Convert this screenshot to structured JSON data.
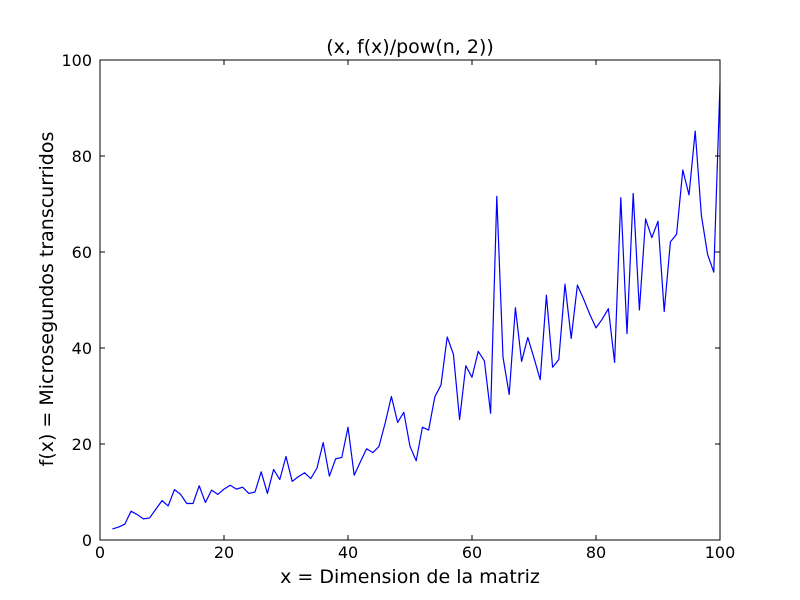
{
  "chart_data": {
    "type": "line",
    "title": "(x, f(x)/pow(n, 2))",
    "xlabel": "x = Dimension de la matriz",
    "ylabel": "f(x) = Microsegundos transcurridos",
    "xlim": [
      0,
      100
    ],
    "ylim": [
      0,
      100
    ],
    "xticks": [
      "0",
      "20",
      "40",
      "60",
      "80",
      "100"
    ],
    "yticks": [
      "0",
      "20",
      "40",
      "60",
      "80",
      "100"
    ],
    "grid": false,
    "line_color": "#0000ff",
    "series": [
      {
        "x": [
          2,
          3,
          4,
          5,
          6,
          7,
          8,
          9,
          10,
          11,
          12,
          13,
          14,
          15,
          16,
          17,
          18,
          19,
          20,
          21,
          22,
          23,
          24,
          25,
          26,
          27,
          28,
          29,
          30,
          31,
          32,
          33,
          34,
          35,
          36,
          37,
          38,
          39,
          40,
          41,
          42,
          43,
          44,
          45,
          46,
          47,
          48,
          49,
          50,
          51,
          52,
          53,
          54,
          55,
          56,
          57,
          58,
          59,
          60,
          61,
          62,
          63,
          64,
          65,
          66,
          67,
          68,
          69,
          70,
          71,
          72,
          73,
          74,
          75,
          76,
          77,
          78,
          79,
          80,
          81,
          82,
          83,
          84,
          85,
          86,
          87,
          88,
          89,
          90,
          91,
          92,
          93,
          94,
          95,
          96,
          97,
          98,
          99,
          100
        ],
        "values": [
          2.3,
          2.7,
          3.3,
          6.0,
          5.3,
          4.4,
          4.6,
          6.4,
          8.2,
          7.1,
          10.5,
          9.5,
          7.6,
          7.6,
          11.3,
          7.8,
          10.4,
          9.5,
          10.6,
          11.4,
          10.6,
          11.0,
          9.7,
          10.0,
          14.2,
          9.7,
          14.7,
          12.6,
          17.4,
          12.2,
          13.2,
          14.0,
          12.8,
          15.0,
          20.3,
          13.3,
          16.9,
          17.2,
          23.5,
          13.5,
          16.3,
          19.0,
          18.2,
          19.5,
          24.4,
          29.9,
          24.5,
          26.6,
          19.5,
          16.5,
          23.5,
          22.9,
          29.8,
          32.3,
          42.3,
          38.7,
          25.1,
          36.3,
          33.9,
          39.3,
          37.3,
          26.4,
          71.6,
          38.1,
          30.3,
          48.4,
          37.2,
          42.2,
          37.9,
          33.4,
          51.0,
          36.0,
          37.6,
          53.3,
          42.0,
          53.1,
          50.2,
          47.0,
          44.2,
          46.0,
          48.2,
          37.0,
          71.3,
          43.0,
          72.2,
          47.9,
          66.9,
          63.0,
          66.4,
          47.6,
          62.1,
          63.7,
          77.1,
          71.9,
          85.2,
          67.6,
          59.5,
          55.8,
          95.0
        ]
      }
    ]
  }
}
